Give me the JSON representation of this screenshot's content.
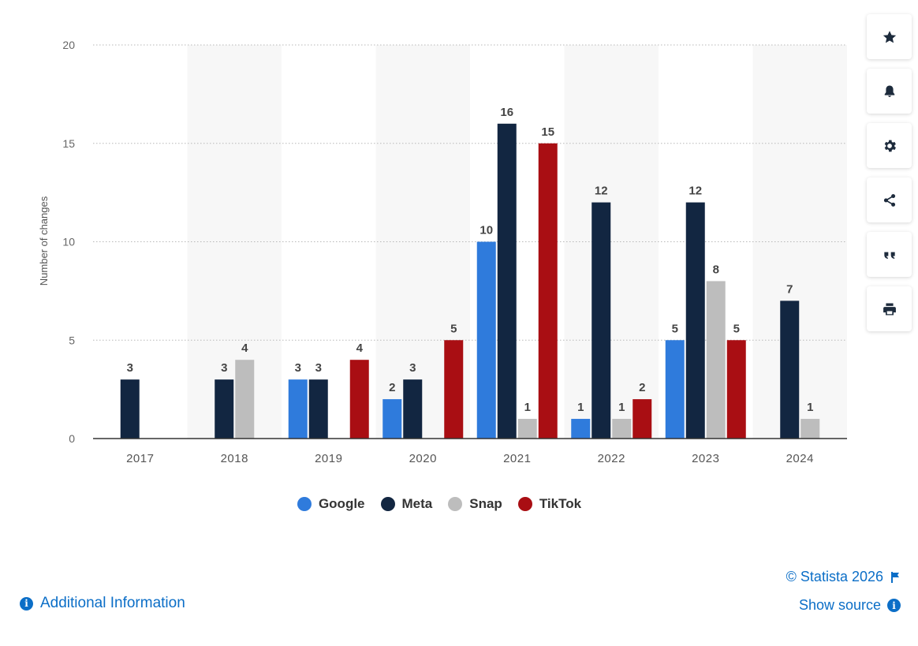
{
  "chart_data": {
    "type": "bar",
    "categories": [
      "2017",
      "2018",
      "2019",
      "2020",
      "2021",
      "2022",
      "2023",
      "2024"
    ],
    "series": [
      {
        "name": "Google",
        "color": "#2f7bdc",
        "values": [
          null,
          null,
          3,
          2,
          10,
          1,
          5,
          null
        ]
      },
      {
        "name": "Meta",
        "color": "#122641",
        "values": [
          3,
          3,
          3,
          3,
          16,
          12,
          12,
          7
        ]
      },
      {
        "name": "Snap",
        "color": "#bdbdbd",
        "values": [
          null,
          4,
          null,
          null,
          1,
          1,
          8,
          1
        ]
      },
      {
        "name": "TikTok",
        "color": "#a90e13",
        "values": [
          null,
          null,
          4,
          5,
          15,
          2,
          5,
          null
        ]
      }
    ],
    "ylabel": "Number of changes",
    "xlabel": "",
    "ylim": [
      0,
      20
    ],
    "yticks": [
      0,
      5,
      10,
      15,
      20
    ],
    "grid": true,
    "legend": "bottom"
  },
  "legend": [
    {
      "label": "Google",
      "color": "#2f7bdc"
    },
    {
      "label": "Meta",
      "color": "#122641"
    },
    {
      "label": "Snap",
      "color": "#bdbdbd"
    },
    {
      "label": "TikTok",
      "color": "#a90e13"
    }
  ],
  "toolbar": {
    "buttons": [
      {
        "name": "favorite",
        "icon": "star-icon"
      },
      {
        "name": "notification",
        "icon": "bell-icon"
      },
      {
        "name": "settings",
        "icon": "gear-icon"
      },
      {
        "name": "share",
        "icon": "share-icon"
      },
      {
        "name": "cite",
        "icon": "quote-icon"
      },
      {
        "name": "print",
        "icon": "print-icon"
      }
    ]
  },
  "footer": {
    "additional_info": "Additional Information",
    "copyright": "© Statista 2026",
    "show_source": "Show source"
  }
}
